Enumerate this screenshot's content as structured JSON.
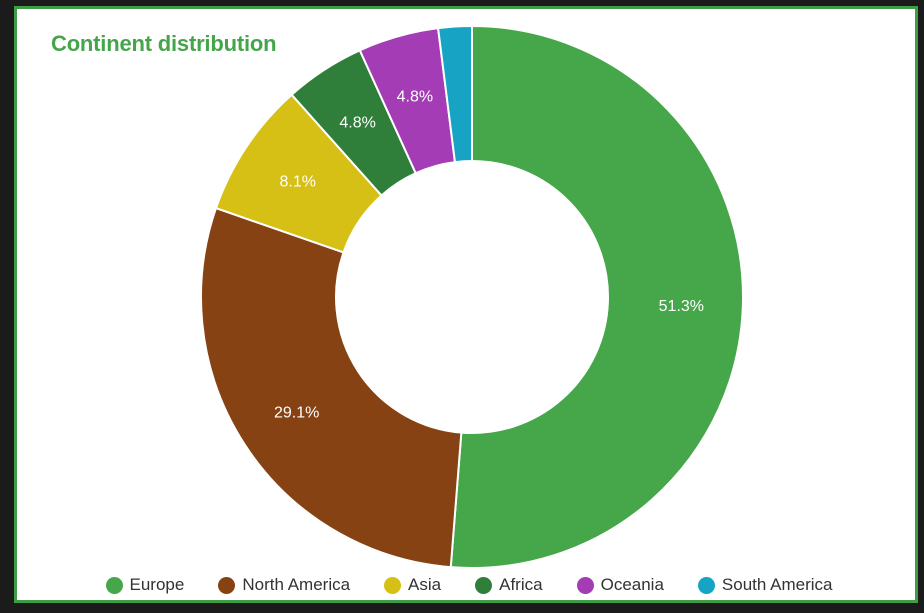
{
  "title": "Continent distribution",
  "chart_data": {
    "type": "pie",
    "title": "Continent distribution",
    "categories": [
      "Europe",
      "North America",
      "Asia",
      "Africa",
      "Oceania",
      "South America"
    ],
    "values": [
      51.3,
      29.1,
      8.1,
      4.8,
      4.8,
      2.0
    ],
    "labels": [
      "51.3%",
      "29.1%",
      "8.1%",
      "4.8%",
      "4.8%",
      ""
    ],
    "colors": [
      "#46a64a",
      "#874213",
      "#d6c015",
      "#2f7f3a",
      "#a43cb5",
      "#17a3c4"
    ],
    "legend_position": "bottom",
    "donut": true
  }
}
